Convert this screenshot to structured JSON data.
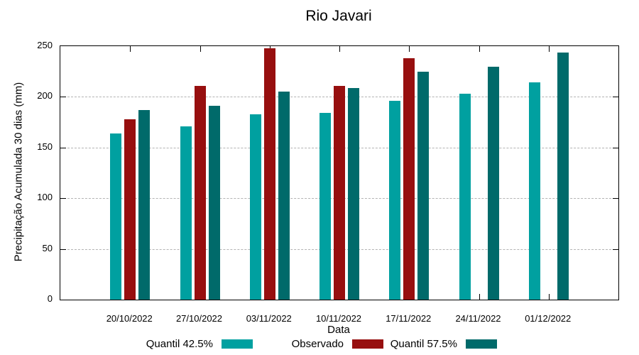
{
  "title": "Rio Javari",
  "chart_data": {
    "type": "bar",
    "title": "Rio Javari",
    "xlabel": "Data",
    "ylabel": "Precipitação Acumulada 30 dias (mm)",
    "ylim": [
      0,
      250
    ],
    "yticks": [
      0,
      50,
      100,
      150,
      200,
      250
    ],
    "grid": "horizontal dashed gridlines at 50, 100, 150, 200",
    "legend_position": "bottom-center",
    "categories": [
      "20/10/2022",
      "27/10/2022",
      "03/11/2022",
      "10/11/2022",
      "17/11/2022",
      "24/11/2022",
      "01/12/2022"
    ],
    "series": [
      {
        "name": "Quantil 42.5%",
        "color": "#00A0A0",
        "values": [
          164,
          171,
          183,
          184,
          196,
          203,
          214
        ]
      },
      {
        "name": "Observado",
        "color": "#970F0F",
        "values": [
          178,
          211,
          248,
          211,
          238,
          null,
          null
        ]
      },
      {
        "name": "Quantil 57.5%",
        "color": "#006A6A",
        "values": [
          187,
          191,
          205,
          209,
          225,
          230,
          244
        ]
      }
    ]
  }
}
